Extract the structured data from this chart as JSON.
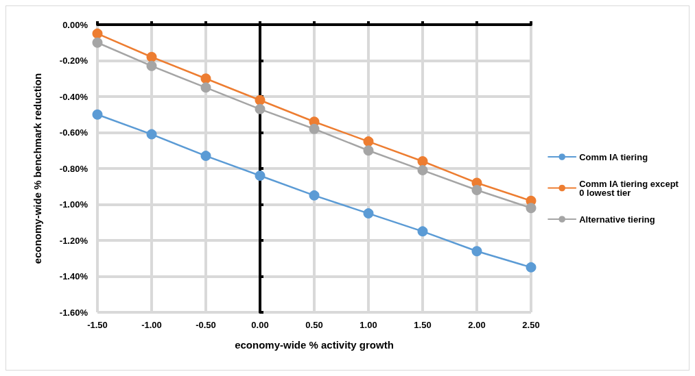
{
  "chart_data": {
    "type": "line",
    "xlabel": "economy-wide % activity growth",
    "ylabel": "economy-wide % benchmark reduction",
    "x": [
      -1.5,
      -1.0,
      -0.5,
      0.0,
      0.5,
      1.0,
      1.5,
      2.0,
      2.5
    ],
    "series": [
      {
        "name": "Comm IA tiering",
        "color": "#5b9bd5",
        "values": [
          -0.5,
          -0.61,
          -0.73,
          -0.84,
          -0.95,
          -1.05,
          -1.15,
          -1.26,
          -1.35
        ]
      },
      {
        "name": "Comm IA tiering except 0 lowest tier",
        "color": "#ed7d31",
        "values": [
          -0.05,
          -0.18,
          -0.3,
          -0.42,
          -0.54,
          -0.65,
          -0.76,
          -0.88,
          -0.98
        ]
      },
      {
        "name": "Alternative tiering",
        "color": "#a5a5a5",
        "values": [
          -0.1,
          -0.23,
          -0.35,
          -0.47,
          -0.58,
          -0.7,
          -0.81,
          -0.92,
          -1.02
        ]
      }
    ],
    "xlim": [
      -1.5,
      2.5
    ],
    "xticks": [
      {
        "value": -1.5,
        "label": "-1.50"
      },
      {
        "value": -1.0,
        "label": "-1.00"
      },
      {
        "value": -0.5,
        "label": "-0.50"
      },
      {
        "value": 0,
        "label": "0.00"
      },
      {
        "value": 0.5,
        "label": "0.50"
      },
      {
        "value": 1.0,
        "label": "1.00"
      },
      {
        "value": 1.5,
        "label": "1.50"
      },
      {
        "value": 2.0,
        "label": "2.00"
      },
      {
        "value": 2.5,
        "label": "2.50"
      }
    ],
    "ylim": [
      -1.6,
      0
    ],
    "yticks": [
      {
        "value": -1.6,
        "label": "-1.60%"
      },
      {
        "value": -1.4,
        "label": "-1.40%"
      },
      {
        "value": -1.2,
        "label": "-1.20%"
      },
      {
        "value": -1.0,
        "label": "-1.00%"
      },
      {
        "value": -0.8,
        "label": "-0.80%"
      },
      {
        "value": -0.6,
        "label": "-0.60%"
      },
      {
        "value": -0.4,
        "label": "-0.40%"
      },
      {
        "value": -0.2,
        "label": "-0.20%"
      },
      {
        "value": 0,
        "label": "0.00%"
      }
    ],
    "grid": true,
    "legend": "right",
    "marker": "circle",
    "line_style": "solid"
  }
}
